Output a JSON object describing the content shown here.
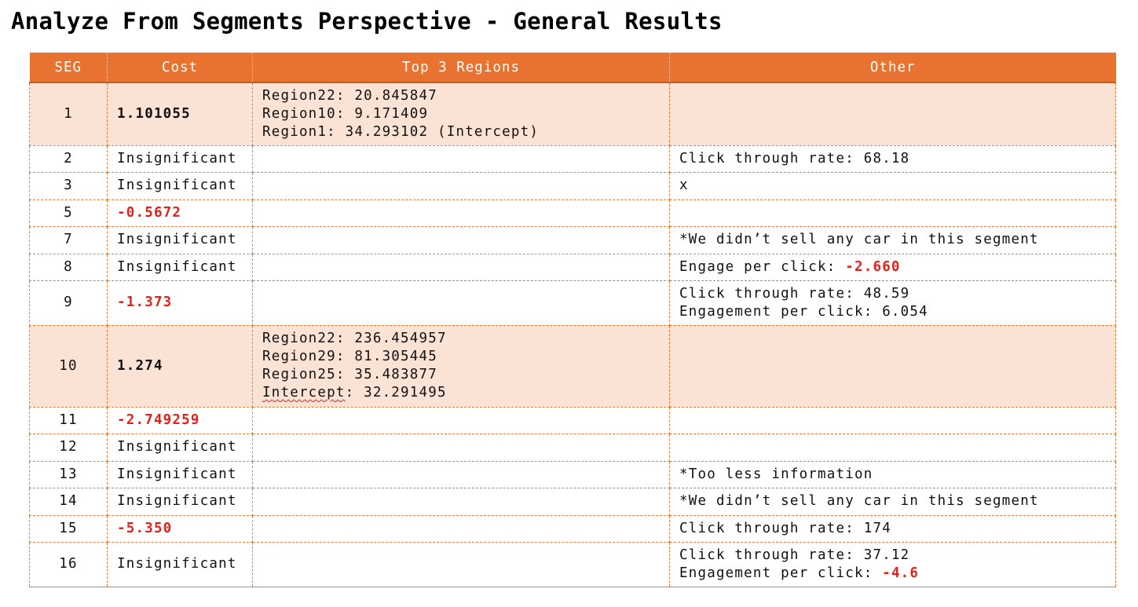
{
  "title": "Analyze From Segments Perspective - General Results",
  "columns": [
    "SEG",
    "Cost",
    "Top 3 Regions",
    "Other"
  ],
  "colors": {
    "header": "#e87230",
    "shaded_row": "#fae3d4",
    "negative": "#e8201b"
  },
  "rows": [
    {
      "seg": "1",
      "cost": "1.101055",
      "regions": [
        "Region22: 20.845847",
        "Region10: 9.171409",
        "Region1: 34.293102 (Intercept)"
      ],
      "other": []
    },
    {
      "seg": "2",
      "cost": "Insignificant",
      "regions": [],
      "other": [
        {
          "label": "Click through rate: 68.18",
          "value": ""
        }
      ]
    },
    {
      "seg": "3",
      "cost": "Insignificant",
      "regions": [],
      "other": [
        {
          "label": "x",
          "value": ""
        }
      ]
    },
    {
      "seg": "5",
      "cost": "-0.5672",
      "regions": [],
      "other": []
    },
    {
      "seg": "7",
      "cost": "Insignificant",
      "regions": [],
      "other": [
        {
          "label": "*We didn’t sell any car in this segment",
          "value": ""
        }
      ]
    },
    {
      "seg": "8",
      "cost": "Insignificant",
      "regions": [],
      "other": [
        {
          "label": "Engage per click: ",
          "value": "-2.660"
        }
      ]
    },
    {
      "seg": "9",
      "cost": "-1.373",
      "regions": [],
      "other": [
        {
          "label": "Click through rate: 48.59",
          "value": ""
        },
        {
          "label": "Engagement per click: 6.054",
          "value": ""
        }
      ]
    },
    {
      "seg": "10",
      "cost": "1.274",
      "regions": [
        "Region22: 236.454957",
        "Region29: 81.305445",
        "Region25: 35.483877",
        "Intercept: 32.291495"
      ],
      "other": []
    },
    {
      "seg": "11",
      "cost": "-2.749259",
      "regions": [],
      "other": []
    },
    {
      "seg": "12",
      "cost": "Insignificant",
      "regions": [],
      "other": []
    },
    {
      "seg": "13",
      "cost": "Insignificant",
      "regions": [],
      "other": [
        {
          "label": "*Too less information",
          "value": ""
        }
      ]
    },
    {
      "seg": "14",
      "cost": "Insignificant",
      "regions": [],
      "other": [
        {
          "label": "*We didn’t sell any car in this segment",
          "value": ""
        }
      ]
    },
    {
      "seg": "15",
      "cost": "-5.350",
      "regions": [],
      "other": [
        {
          "label": "Click through rate: 174",
          "value": ""
        }
      ]
    },
    {
      "seg": "16",
      "cost": "Insignificant",
      "regions": [],
      "other": [
        {
          "label": "Click through rate: 37.12",
          "value": ""
        },
        {
          "label": "Engagement per click: ",
          "value": "-4.6"
        }
      ]
    }
  ]
}
